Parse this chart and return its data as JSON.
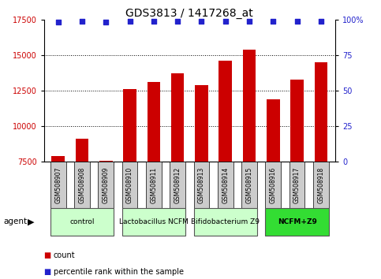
{
  "title": "GDS3813 / 1417268_at",
  "samples": [
    "GSM508907",
    "GSM508908",
    "GSM508909",
    "GSM508910",
    "GSM508911",
    "GSM508912",
    "GSM508913",
    "GSM508914",
    "GSM508915",
    "GSM508916",
    "GSM508917",
    "GSM508918"
  ],
  "counts": [
    7900,
    9100,
    7600,
    12600,
    13100,
    13700,
    12900,
    14600,
    15400,
    11900,
    13300,
    14500
  ],
  "percentiles": [
    98,
    99,
    98,
    99,
    99,
    99,
    99,
    99,
    99,
    99,
    99,
    99
  ],
  "ylim_left": [
    7500,
    17500
  ],
  "ylim_right": [
    0,
    100
  ],
  "yticks_left": [
    7500,
    10000,
    12500,
    15000,
    17500
  ],
  "yticks_right": [
    0,
    25,
    50,
    75,
    100
  ],
  "ytick_labels_right": [
    "0",
    "25",
    "50",
    "75",
    "100%"
  ],
  "bar_color": "#cc0000",
  "dot_color": "#2222cc",
  "groups": [
    {
      "label": "control",
      "start": 0,
      "end": 3,
      "color": "#ccffcc"
    },
    {
      "label": "Lactobacillus NCFM",
      "start": 3,
      "end": 6,
      "color": "#ccffcc"
    },
    {
      "label": "Bifidobacterium Z9",
      "start": 6,
      "end": 9,
      "color": "#ccffcc"
    },
    {
      "label": "NCFM+Z9",
      "start": 9,
      "end": 12,
      "color": "#33dd33"
    }
  ],
  "agent_label": "agent",
  "legend_count_label": "count",
  "legend_pct_label": "percentile rank within the sample",
  "bar_width": 0.55,
  "title_fontsize": 10,
  "axis_label_color_left": "#cc0000",
  "axis_label_color_right": "#2222cc",
  "sample_box_color": "#cccccc",
  "group_border_color": "#555555"
}
